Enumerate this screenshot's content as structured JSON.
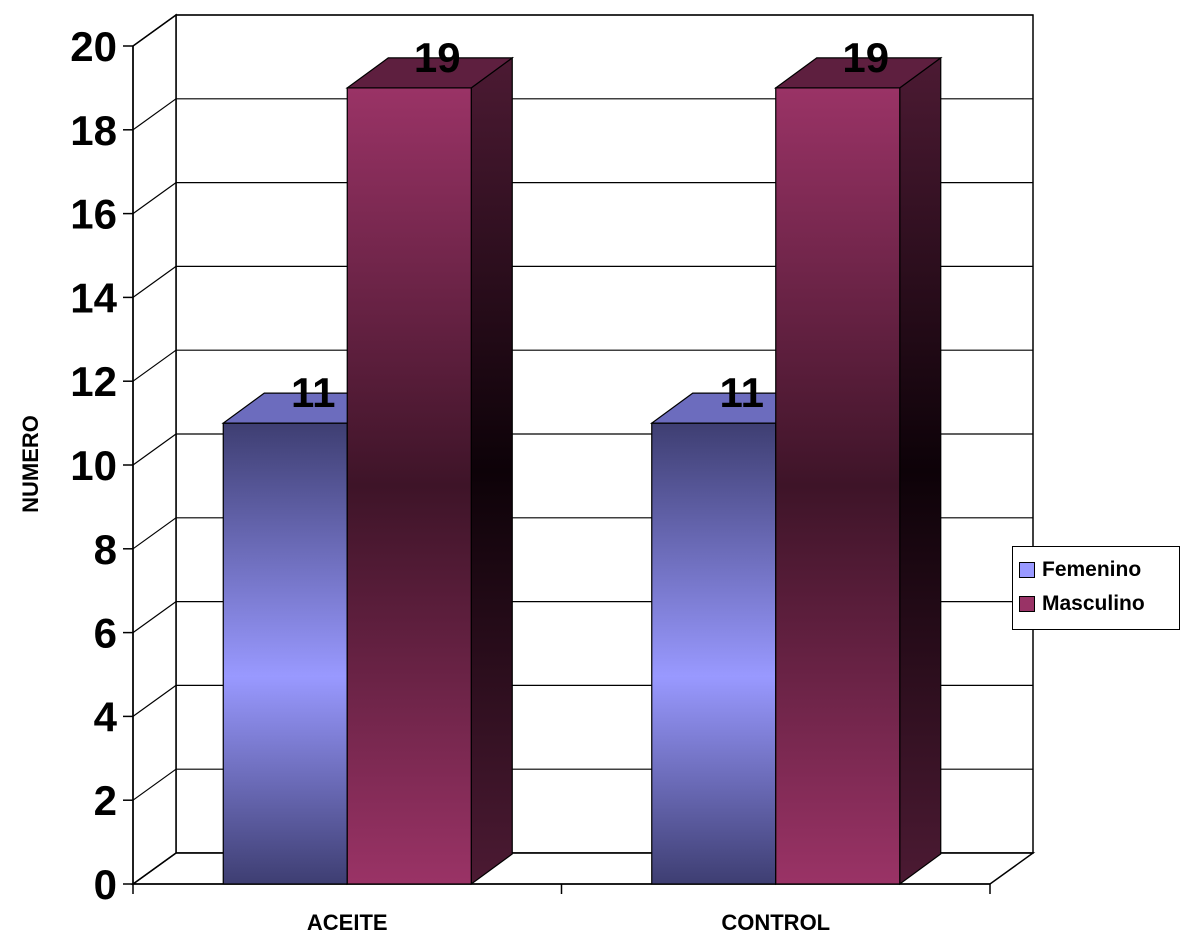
{
  "chart_data": {
    "type": "bar",
    "title": "",
    "xlabel": "",
    "ylabel": "NUMERO",
    "categories": [
      "ACEITE",
      "CONTROL"
    ],
    "series": [
      {
        "name": "Femenino",
        "values": [
          11,
          11
        ],
        "color": "#9999ff"
      },
      {
        "name": "Masculino",
        "values": [
          19,
          19
        ],
        "color": "#993366"
      }
    ],
    "ylim": [
      0,
      20
    ],
    "yticks": [
      0,
      2,
      4,
      6,
      8,
      10,
      12,
      14,
      16,
      18,
      20
    ],
    "data_labels": [
      [
        "11",
        "11"
      ],
      [
        "19",
        "19"
      ]
    ],
    "grid": true,
    "legend_position": "right",
    "style": "3d-column"
  }
}
